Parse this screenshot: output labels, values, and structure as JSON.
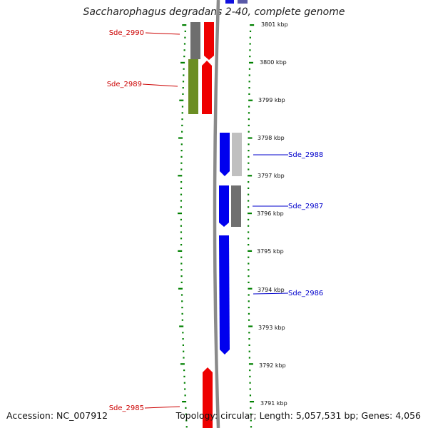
{
  "title": "Saccharophagus degradans 2-40, complete genome",
  "footer": {
    "accession": "Accession: NC_007912",
    "topology": "Topology: circular; Length: 5,057,531 bp; Genes: 4,056"
  },
  "colors": {
    "forward_label": "#cc0000",
    "reverse_label": "#0000cc",
    "tick": "#008000",
    "backbone": "#808080"
  },
  "ticks": [
    "3801 kbp",
    "3800 kbp",
    "3799 kbp",
    "3798 kbp",
    "3797 kbp",
    "3796 kbp",
    "3795 kbp",
    "3794 kbp",
    "3793 kbp",
    "3792 kbp",
    "3791 kbp"
  ],
  "genes": [
    {
      "label": "Sde_2990",
      "strand": "forward"
    },
    {
      "label": "Sde_2989",
      "strand": "forward"
    },
    {
      "label": "Sde_2988",
      "strand": "reverse"
    },
    {
      "label": "Sde_2987",
      "strand": "reverse"
    },
    {
      "label": "Sde_2986",
      "strand": "reverse"
    },
    {
      "label": "Sde_2985",
      "strand": "forward"
    }
  ]
}
